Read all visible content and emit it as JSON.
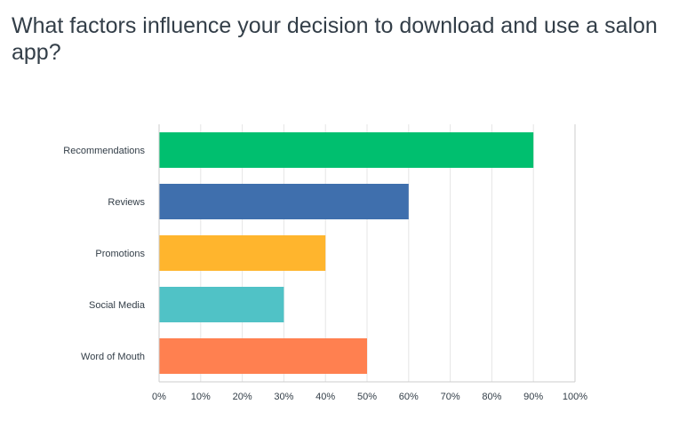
{
  "chart_data": {
    "type": "bar",
    "orientation": "horizontal",
    "title": "What factors influence your decision to download and use a salon app?",
    "categories": [
      "Recommendations",
      "Reviews",
      "Promotions",
      "Social Media",
      "Word of Mouth"
    ],
    "values": [
      90,
      60,
      40,
      30,
      50
    ],
    "colors": [
      "#00bf6f",
      "#3f6fad",
      "#ffb52d",
      "#50c2c6",
      "#ff8050"
    ],
    "xlim": [
      0,
      100
    ],
    "x_ticks": [
      "0%",
      "10%",
      "20%",
      "30%",
      "40%",
      "50%",
      "60%",
      "70%",
      "80%",
      "90%",
      "100%"
    ],
    "grid": true,
    "gridline_color": "#e5e5e5",
    "axis_color": "#cccccc"
  }
}
